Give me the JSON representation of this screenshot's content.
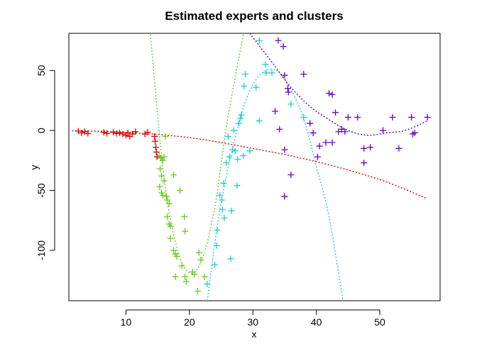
{
  "chart_data": {
    "type": "scatter",
    "title": "Estimated experts and clusters",
    "xlabel": "x",
    "ylabel": "y",
    "xlim": [
      1.0,
      59.5
    ],
    "ylim": [
      -142,
      81
    ],
    "xticks": [
      10,
      20,
      30,
      40,
      50
    ],
    "yticks": [
      -100,
      -50,
      0,
      50
    ],
    "marker": "+",
    "grid": false,
    "legend": "none",
    "colors": {
      "red": "#dd0000",
      "green": "#66cc22",
      "cyan": "#22cccc",
      "purple": "#6600cc"
    },
    "series": [
      {
        "color": "#dd0000",
        "points": [
          [
            2.5,
            -0.5
          ],
          [
            3.0,
            -2.0
          ],
          [
            3.5,
            -1.0
          ],
          [
            4.0,
            -2.5
          ],
          [
            6.5,
            -1.5
          ],
          [
            7.0,
            -2.5
          ],
          [
            8.0,
            -1.5
          ],
          [
            8.5,
            -2.5
          ],
          [
            9.0,
            -2.0
          ],
          [
            9.5,
            -3.0
          ],
          [
            10.0,
            -4.0
          ],
          [
            10.3,
            -2.0
          ],
          [
            10.6,
            -5.0
          ],
          [
            11.0,
            -3.0
          ],
          [
            11.5,
            -1.0
          ],
          [
            13.0,
            -3.0
          ],
          [
            13.4,
            -1.5
          ],
          [
            14.5,
            -5.0
          ],
          [
            14.6,
            -9.0
          ],
          [
            14.7,
            -14.0
          ],
          [
            14.8,
            -18.0
          ],
          [
            14.9,
            -22.0
          ]
        ],
        "curve": [
          [
            1.5,
            -0.2
          ],
          [
            10,
            -1.6
          ],
          [
            20,
            -6
          ],
          [
            30,
            -15
          ],
          [
            40,
            -26
          ],
          [
            50,
            -41
          ],
          [
            57.5,
            -57
          ]
        ]
      },
      {
        "color": "#66cc22",
        "points": [
          [
            15.2,
            -21.0
          ],
          [
            15.5,
            -23.0
          ],
          [
            15.8,
            -25.0
          ],
          [
            16.0,
            -22.0
          ],
          [
            15.4,
            -32.0
          ],
          [
            15.6,
            -38.0
          ],
          [
            16.0,
            -42.0
          ],
          [
            15.3,
            -47.0
          ],
          [
            15.6,
            -52.0
          ],
          [
            15.8,
            -54.0
          ],
          [
            16.4,
            -55.0
          ],
          [
            16.5,
            -58.0
          ],
          [
            16.8,
            -61.0
          ],
          [
            16.5,
            -72.0
          ],
          [
            16.8,
            -78.0
          ],
          [
            17.0,
            -80.0
          ],
          [
            17.0,
            -90.0
          ],
          [
            17.5,
            -100.0
          ],
          [
            17.8,
            -103.0
          ],
          [
            18.0,
            -105.0
          ],
          [
            17.5,
            -37.0
          ],
          [
            18.5,
            -50.0
          ],
          [
            19.2,
            -72.0
          ],
          [
            19.3,
            -84.0
          ],
          [
            18.8,
            -113.0
          ],
          [
            17.8,
            -122.0
          ],
          [
            19.3,
            -122.0
          ],
          [
            19.5,
            -126.0
          ],
          [
            20.5,
            -118.0
          ],
          [
            20.8,
            -120.0
          ],
          [
            21.5,
            -102.0
          ],
          [
            21.8,
            -108.0
          ],
          [
            21.3,
            -134.0
          ],
          [
            22.4,
            -122.0
          ],
          [
            16.2,
            -5.0
          ]
        ],
        "curve": [
          [
            13.85,
            80
          ],
          [
            16,
            -40
          ],
          [
            18,
            -97
          ],
          [
            20,
            -119
          ],
          [
            22,
            -107
          ],
          [
            24,
            -64
          ],
          [
            26,
            9
          ],
          [
            28.5,
            80
          ]
        ]
      },
      {
        "color": "#22cccc",
        "points": [
          [
            22.8,
            -128.0
          ],
          [
            24.0,
            -112.0
          ],
          [
            24.3,
            -96.0
          ],
          [
            24.4,
            -83.0
          ],
          [
            24.8,
            -54.0
          ],
          [
            25.1,
            -58.0
          ],
          [
            25.2,
            -66.0
          ],
          [
            25.4,
            -44.0
          ],
          [
            25.5,
            -73.0
          ],
          [
            25.8,
            -27.0
          ],
          [
            26.1,
            -5.0
          ],
          [
            26.3,
            -22.0
          ],
          [
            26.5,
            -107.0
          ],
          [
            26.6,
            -67.0
          ],
          [
            26.8,
            -16.0
          ],
          [
            27.0,
            0.0
          ],
          [
            27.2,
            -17.0
          ],
          [
            27.5,
            -46.0
          ],
          [
            27.6,
            -24.0
          ],
          [
            27.8,
            6.0
          ],
          [
            28.0,
            10.0
          ],
          [
            28.2,
            13.0
          ],
          [
            28.5,
            -21.0
          ],
          [
            28.6,
            37.0
          ],
          [
            28.8,
            47.0
          ],
          [
            29.5,
            -17.0
          ],
          [
            30.5,
            36.0
          ],
          [
            31.0,
            8.0
          ],
          [
            31.0,
            75.0
          ],
          [
            32.0,
            55.0
          ],
          [
            32.1,
            48.0
          ],
          [
            33.0,
            48.0
          ],
          [
            36.0,
            22.0
          ],
          [
            38.0,
            11.0
          ]
        ],
        "curve": [
          [
            22.8,
            -142
          ],
          [
            25,
            -60
          ],
          [
            28,
            10
          ],
          [
            30,
            38
          ],
          [
            32,
            50
          ],
          [
            34,
            49
          ],
          [
            36,
            34
          ],
          [
            38,
            10
          ],
          [
            40,
            -30
          ],
          [
            42,
            -72
          ],
          [
            44.2,
            -142
          ]
        ]
      },
      {
        "color": "#6600cc",
        "points": [
          [
            34.0,
            75.0
          ],
          [
            34.8,
            70.0
          ],
          [
            35.0,
            46.0
          ],
          [
            35.5,
            35.0
          ],
          [
            35.6,
            32.0
          ],
          [
            38.0,
            47.0
          ],
          [
            33.5,
            16.0
          ],
          [
            34.2,
            1.0
          ],
          [
            35.0,
            -16.0
          ],
          [
            36.0,
            -37.0
          ],
          [
            35.0,
            -55.0
          ],
          [
            39.0,
            6.0
          ],
          [
            39.5,
            -2.0
          ],
          [
            40.5,
            -13.0
          ],
          [
            40.2,
            -22.0
          ],
          [
            41.5,
            -10.0
          ],
          [
            42.0,
            31.0
          ],
          [
            42.5,
            30.0
          ],
          [
            43.0,
            15.0
          ],
          [
            42.5,
            -10.0
          ],
          [
            43.5,
            -1.0
          ],
          [
            44.0,
            1.0
          ],
          [
            44.5,
            -1.0
          ],
          [
            45.0,
            11.0
          ],
          [
            46.5,
            11.0
          ],
          [
            47.5,
            -15.0
          ],
          [
            47.5,
            -27.0
          ],
          [
            48.5,
            -14.0
          ],
          [
            50.5,
            0.0
          ],
          [
            52.0,
            11.0
          ],
          [
            53.0,
            -15.0
          ],
          [
            55.0,
            11.0
          ],
          [
            55.2,
            -3.0
          ],
          [
            55.5,
            -2.0
          ],
          [
            57.5,
            11.0
          ]
        ],
        "curve": [
          [
            29.5,
            81
          ],
          [
            33,
            57
          ],
          [
            36,
            36
          ],
          [
            39,
            20
          ],
          [
            42,
            9
          ],
          [
            45,
            0
          ],
          [
            48,
            -4
          ],
          [
            51,
            -2
          ],
          [
            54,
            0
          ],
          [
            57.5,
            8
          ]
        ]
      }
    ]
  }
}
